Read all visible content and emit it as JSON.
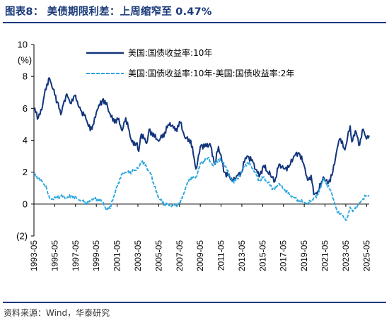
{
  "title": "图表8：  美债期限利差：上周缩窄至 0.47%",
  "source": "资料来源：Wind，华泰研究",
  "colors": {
    "y10": "#13357c",
    "spread": "#2aa6df",
    "rule": "#1a3a7a"
  },
  "chart_data": {
    "type": "line",
    "unit_label": "(%)",
    "ylim": [
      -2,
      10
    ],
    "yticks": [
      -2,
      0,
      2,
      4,
      6,
      8,
      10
    ],
    "ytick_labels": [
      "(2)",
      "0",
      "2",
      "4",
      "6",
      "8",
      "10"
    ],
    "x_range": [
      "1993-05",
      "2025-08"
    ],
    "xtick_labels": [
      "1993-05",
      "1995-05",
      "1997-05",
      "1999-05",
      "2001-05",
      "2003-05",
      "2005-05",
      "2007-05",
      "2009-05",
      "2011-05",
      "2013-05",
      "2015-05",
      "2017-05",
      "2019-05",
      "2021-05",
      "2023-05",
      "2025-05"
    ],
    "grid": false,
    "legend_position": "top-center",
    "series": [
      {
        "name": "美国:国债收益率:10年",
        "style": "solid",
        "points": [
          [
            "1993-05",
            6.0
          ],
          [
            "1993-10",
            5.4
          ],
          [
            "1994-02",
            5.9
          ],
          [
            "1994-06",
            7.2
          ],
          [
            "1994-11",
            7.9
          ],
          [
            "1995-03",
            7.2
          ],
          [
            "1995-08",
            6.4
          ],
          [
            "1995-12",
            5.6
          ],
          [
            "1996-04",
            6.5
          ],
          [
            "1996-07",
            6.9
          ],
          [
            "1996-12",
            6.3
          ],
          [
            "1997-04",
            6.8
          ],
          [
            "1997-08",
            6.2
          ],
          [
            "1997-12",
            5.8
          ],
          [
            "1998-04",
            5.6
          ],
          [
            "1998-10",
            4.6
          ],
          [
            "1999-02",
            5.0
          ],
          [
            "1999-06",
            5.9
          ],
          [
            "2000-01",
            6.6
          ],
          [
            "2000-06",
            6.1
          ],
          [
            "2000-12",
            5.2
          ],
          [
            "2001-06",
            5.3
          ],
          [
            "2001-11",
            4.6
          ],
          [
            "2002-03",
            5.4
          ],
          [
            "2002-07",
            4.6
          ],
          [
            "2002-10",
            3.9
          ],
          [
            "2003-03",
            3.8
          ],
          [
            "2003-06",
            3.3
          ],
          [
            "2003-09",
            4.4
          ],
          [
            "2004-03",
            3.8
          ],
          [
            "2004-06",
            4.7
          ],
          [
            "2004-12",
            4.2
          ],
          [
            "2005-06",
            4.0
          ],
          [
            "2005-12",
            4.5
          ],
          [
            "2006-06",
            5.1
          ],
          [
            "2006-12",
            4.6
          ],
          [
            "2007-06",
            5.1
          ],
          [
            "2007-12",
            4.1
          ],
          [
            "2008-06",
            4.0
          ],
          [
            "2008-12",
            2.2
          ],
          [
            "2009-06",
            3.7
          ],
          [
            "2009-12",
            3.6
          ],
          [
            "2010-04",
            3.8
          ],
          [
            "2010-10",
            2.5
          ],
          [
            "2011-02",
            3.6
          ],
          [
            "2011-09",
            2.0
          ],
          [
            "2012-07",
            1.5
          ],
          [
            "2012-12",
            1.8
          ],
          [
            "2013-05",
            2.0
          ],
          [
            "2013-09",
            2.9
          ],
          [
            "2013-12",
            3.0
          ],
          [
            "2014-06",
            2.6
          ],
          [
            "2015-01",
            1.7
          ],
          [
            "2015-06",
            2.4
          ],
          [
            "2016-02",
            1.8
          ],
          [
            "2016-07",
            1.4
          ],
          [
            "2016-12",
            2.5
          ],
          [
            "2017-06",
            2.2
          ],
          [
            "2017-12",
            2.4
          ],
          [
            "2018-05",
            3.0
          ],
          [
            "2018-11",
            3.2
          ],
          [
            "2019-05",
            2.4
          ],
          [
            "2019-09",
            1.5
          ],
          [
            "2020-01",
            1.8
          ],
          [
            "2020-04",
            0.6
          ],
          [
            "2020-08",
            0.6
          ],
          [
            "2021-03",
            1.7
          ],
          [
            "2021-08",
            1.3
          ],
          [
            "2022-01",
            1.8
          ],
          [
            "2022-06",
            3.2
          ],
          [
            "2022-10",
            4.1
          ],
          [
            "2023-04",
            3.4
          ],
          [
            "2023-10",
            4.9
          ],
          [
            "2023-12",
            3.9
          ],
          [
            "2024-04",
            4.6
          ],
          [
            "2024-09",
            3.7
          ],
          [
            "2025-01",
            4.7
          ],
          [
            "2025-04",
            4.2
          ],
          [
            "2025-08",
            4.3
          ]
        ]
      },
      {
        "name": "美国:国债收益率:10年-美国:国债收益率:2年",
        "style": "dashed",
        "points": [
          [
            "1993-05",
            1.9
          ],
          [
            "1993-10",
            1.6
          ],
          [
            "1994-03",
            1.4
          ],
          [
            "1994-08",
            0.9
          ],
          [
            "1994-12",
            0.3
          ],
          [
            "1995-06",
            0.4
          ],
          [
            "1995-12",
            0.5
          ],
          [
            "1996-06",
            0.4
          ],
          [
            "1997-01",
            0.5
          ],
          [
            "1997-08",
            0.3
          ],
          [
            "1998-01",
            0.2
          ],
          [
            "1998-06",
            0.0
          ],
          [
            "1998-12",
            0.3
          ],
          [
            "1999-06",
            0.3
          ],
          [
            "2000-01",
            0.1
          ],
          [
            "2000-05",
            -0.4
          ],
          [
            "2000-10",
            -0.1
          ],
          [
            "2001-02",
            0.6
          ],
          [
            "2001-06",
            1.3
          ],
          [
            "2001-12",
            2.0
          ],
          [
            "2002-05",
            2.0
          ],
          [
            "2002-10",
            2.0
          ],
          [
            "2003-06",
            2.3
          ],
          [
            "2003-10",
            2.7
          ],
          [
            "2004-03",
            2.3
          ],
          [
            "2004-08",
            1.9
          ],
          [
            "2004-12",
            1.1
          ],
          [
            "2005-06",
            0.3
          ],
          [
            "2005-12",
            0.0
          ],
          [
            "2006-06",
            -0.1
          ],
          [
            "2006-12",
            -0.1
          ],
          [
            "2007-06",
            0.1
          ],
          [
            "2007-12",
            1.0
          ],
          [
            "2008-05",
            1.6
          ],
          [
            "2008-12",
            1.7
          ],
          [
            "2009-06",
            2.6
          ],
          [
            "2010-02",
            2.9
          ],
          [
            "2010-08",
            2.4
          ],
          [
            "2011-02",
            2.8
          ],
          [
            "2011-08",
            2.6
          ],
          [
            "2012-06",
            1.4
          ],
          [
            "2013-01",
            1.6
          ],
          [
            "2013-07",
            2.3
          ],
          [
            "2013-12",
            2.6
          ],
          [
            "2014-06",
            2.2
          ],
          [
            "2015-01",
            1.5
          ],
          [
            "2015-06",
            1.7
          ],
          [
            "2016-01",
            1.2
          ],
          [
            "2016-06",
            0.9
          ],
          [
            "2016-12",
            1.3
          ],
          [
            "2017-06",
            0.9
          ],
          [
            "2017-12",
            0.6
          ],
          [
            "2018-06",
            0.4
          ],
          [
            "2018-12",
            0.2
          ],
          [
            "2019-05",
            0.1
          ],
          [
            "2019-08",
            0.0
          ],
          [
            "2020-01",
            0.2
          ],
          [
            "2020-04",
            0.4
          ],
          [
            "2020-09",
            0.6
          ],
          [
            "2021-03",
            1.6
          ],
          [
            "2021-06",
            1.3
          ],
          [
            "2021-12",
            0.8
          ],
          [
            "2022-04",
            0.1
          ],
          [
            "2022-07",
            -0.5
          ],
          [
            "2022-12",
            -0.6
          ],
          [
            "2023-03",
            -0.9
          ],
          [
            "2023-06",
            -1.0
          ],
          [
            "2023-10",
            -0.2
          ],
          [
            "2024-02",
            -0.4
          ],
          [
            "2024-08",
            0.0
          ],
          [
            "2024-12",
            0.2
          ],
          [
            "2025-04",
            0.5
          ],
          [
            "2025-08",
            0.5
          ]
        ]
      }
    ]
  }
}
